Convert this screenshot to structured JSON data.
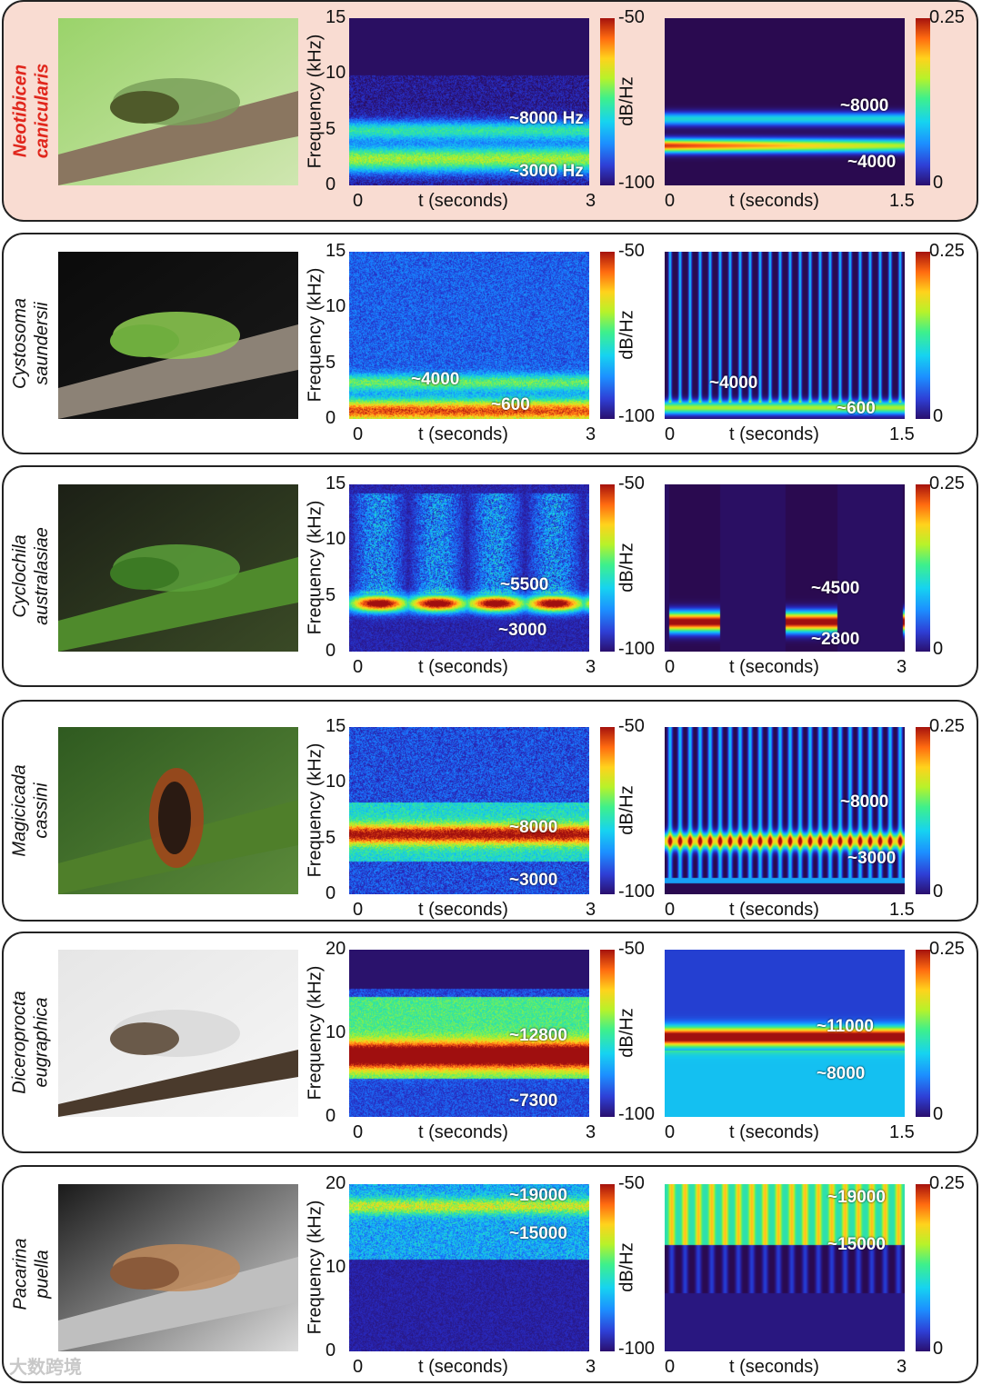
{
  "watermark": "大数跨境",
  "common": {
    "y_axis_label": "Frequency (kHz)",
    "x_axis_label": "t (seconds)",
    "colorbar_unit": "dB/Hz",
    "spec_cb_top": "-50",
    "spec_cb_bottom": "-100",
    "scal_cb_top": "0.25",
    "scal_cb_bottom": "0"
  },
  "rows": [
    {
      "species": [
        "Neotibicen",
        "canicularis"
      ],
      "highlight": true,
      "spec_yticks": [
        "15",
        "10",
        "5",
        "0"
      ],
      "spec_xticks": [
        "0",
        "3"
      ],
      "scal_xticks": [
        "0",
        "1.5"
      ],
      "spec_ann": [
        "~8000 Hz",
        "~3000 Hz"
      ],
      "scal_ann": [
        "~8000",
        "~4000"
      ]
    },
    {
      "species": [
        "Cystosoma",
        "saundersii"
      ],
      "highlight": false,
      "spec_yticks": [
        "15",
        "10",
        "5",
        "0"
      ],
      "spec_xticks": [
        "0",
        "3"
      ],
      "scal_xticks": [
        "0",
        "1.5"
      ],
      "spec_ann": [
        "~4000",
        "~600"
      ],
      "scal_ann": [
        "~4000",
        "~600"
      ]
    },
    {
      "species": [
        "Cyclochila",
        "australasiae"
      ],
      "highlight": false,
      "spec_yticks": [
        "15",
        "10",
        "5",
        "0"
      ],
      "spec_xticks": [
        "0",
        "3"
      ],
      "scal_xticks": [
        "0",
        "3"
      ],
      "spec_ann": [
        "~5500",
        "~3000"
      ],
      "scal_ann": [
        "~4500",
        "~2800"
      ]
    },
    {
      "species": [
        "Magicicada",
        "cassini"
      ],
      "highlight": false,
      "spec_yticks": [
        "15",
        "10",
        "5",
        "0"
      ],
      "spec_xticks": [
        "0",
        "3"
      ],
      "scal_xticks": [
        "0",
        "1.5"
      ],
      "spec_ann": [
        "~8000",
        "~3000"
      ],
      "scal_ann": [
        "~8000",
        "~3000"
      ]
    },
    {
      "species": [
        "Diceroprocta",
        "eugraphica"
      ],
      "highlight": false,
      "spec_yticks": [
        "20",
        "10",
        "0"
      ],
      "spec_xticks": [
        "0",
        "3"
      ],
      "scal_xticks": [
        "0",
        "1.5"
      ],
      "spec_ann": [
        "~12800",
        "~7300"
      ],
      "scal_ann": [
        "~11000",
        "~8000"
      ]
    },
    {
      "species": [
        "Pacarina",
        "puella"
      ],
      "highlight": false,
      "spec_yticks": [
        "20",
        "10",
        "0"
      ],
      "spec_xticks": [
        "0",
        "3"
      ],
      "scal_xticks": [
        "0",
        "3"
      ],
      "spec_ann": [
        "~19000",
        "~15000"
      ],
      "scal_ann": [
        "~19000",
        "~15000"
      ]
    }
  ]
}
